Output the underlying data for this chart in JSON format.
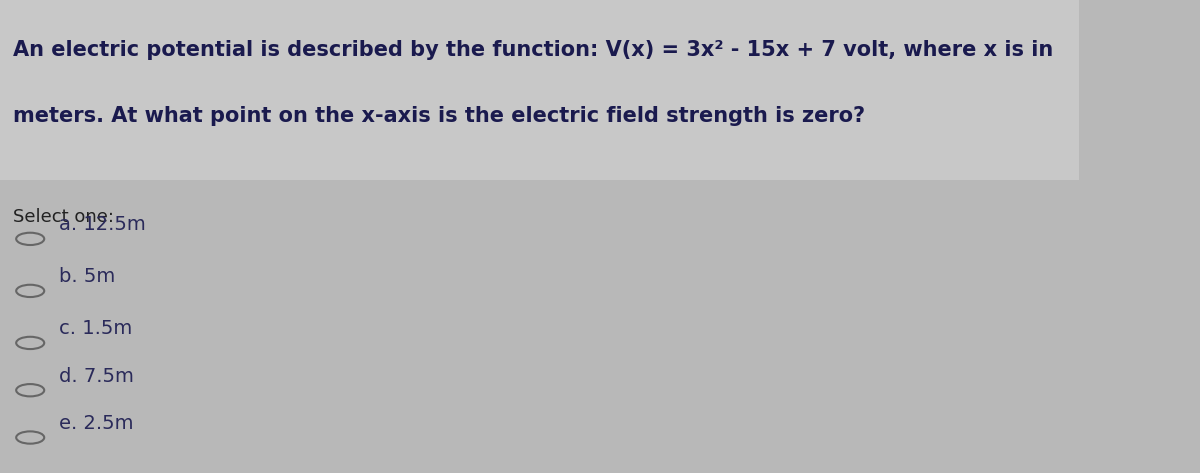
{
  "question_text_line1": "An electric potential is described by the function: V(x) = 3x² - 15x + 7 volt, where x is in",
  "question_text_line2": "meters. At what point on the x-axis is the electric field strength is zero?",
  "select_one": "Select one:",
  "options": [
    "a. 12.5m",
    "b. 5m",
    "c. 1.5m",
    "d. 7.5m",
    "e. 2.5m"
  ],
  "header_bg_color": "#c8c8c8",
  "body_bg_color": "#b8b8b8",
  "text_color": "#1a1a4e",
  "header_text_color": "#1a1a4e",
  "option_text_color": "#2a2a5a",
  "select_one_color": "#222222",
  "circle_color": "#666666",
  "font_size_header": 15,
  "font_size_options": 14,
  "font_size_select": 13
}
